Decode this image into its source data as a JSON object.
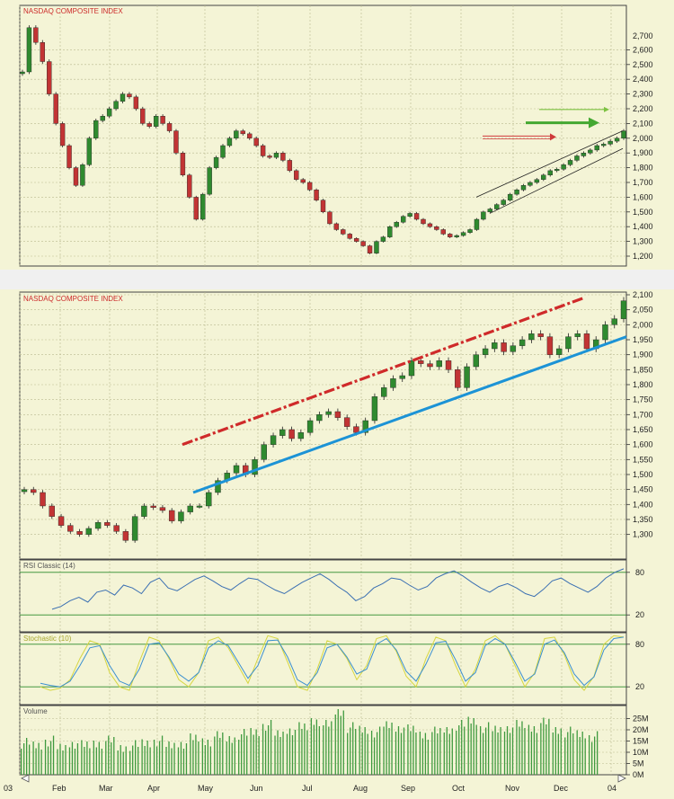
{
  "chart_data": [
    {
      "type": "line",
      "title": "NASDAQ COMPOSITE INDEX",
      "ylim": [
        1150,
        2750
      ],
      "yticks": [
        "2,600",
        "2,500",
        "2,400",
        "2,300",
        "2,200",
        "2,100",
        "2,000",
        "1,900",
        "1,800",
        "1,700",
        "1,600",
        "1,500",
        "1,400",
        "1,300",
        "1,200"
      ],
      "ytick_values": [
        2600,
        2500,
        2400,
        2300,
        2200,
        2100,
        2000,
        1900,
        1800,
        1700,
        1600,
        1500,
        1400,
        1300,
        1200
      ],
      "top_tick": "2,700",
      "series": [
        {
          "values": [
            2450,
            2750,
            2650,
            2520,
            2300,
            2100,
            1950,
            1800,
            1680,
            1820,
            2000,
            2120,
            2150,
            2200,
            2250,
            2300,
            2280,
            2200,
            2100,
            2080,
            2150,
            2100,
            2050,
            1900,
            1750,
            1600,
            1450,
            1620,
            1800,
            1870,
            1950,
            2000,
            2050,
            2030,
            2000,
            1950,
            1880,
            1870,
            1900,
            1850,
            1780,
            1720,
            1700,
            1650,
            1580,
            1500,
            1420,
            1380,
            1350,
            1320,
            1300,
            1270,
            1220,
            1300,
            1330,
            1400,
            1430,
            1470,
            1490,
            1450,
            1420,
            1400,
            1380,
            1350,
            1330,
            1340,
            1360,
            1380,
            1450,
            1500,
            1520,
            1550,
            1580,
            1620,
            1650,
            1680,
            1700,
            1720,
            1750,
            1780,
            1790,
            1820,
            1850,
            1880,
            1900,
            1920,
            1950,
            1960,
            1980,
            2000,
            2050
          ]
        }
      ],
      "channel": {
        "lower": [
          [
            1500,
            1490
          ],
          [
            2030,
            1930
          ]
        ],
        "upper": [
          [
            1700,
            1600
          ],
          [
            2120,
            2050
          ]
        ]
      },
      "arrows": [
        {
          "color": "#7dc242",
          "value": 2195
        },
        {
          "color": "#44a831",
          "value": 2105
        },
        {
          "color": "#cf3a3a",
          "value": 2015
        }
      ]
    },
    {
      "type": "line",
      "title": "NASDAQ COMPOSITE INDEX",
      "ylim": [
        1260,
        2100
      ],
      "yticks": [
        "2,100",
        "2,050",
        "2,000",
        "1,950",
        "1,900",
        "1,850",
        "1,800",
        "1,750",
        "1,700",
        "1,650",
        "1,600",
        "1,550",
        "1,500",
        "1,450",
        "1,400",
        "1,350",
        "1,300"
      ],
      "ytick_values": [
        2100,
        2050,
        2000,
        1950,
        1900,
        1850,
        1800,
        1750,
        1700,
        1650,
        1600,
        1550,
        1500,
        1450,
        1400,
        1350,
        1300
      ],
      "x_labels": [
        "03",
        "Feb",
        "Mar",
        "Apr",
        "May",
        "Jun",
        "Jul",
        "Aug",
        "Sep",
        "Oct",
        "Nov",
        "Dec",
        "04"
      ],
      "series": [
        {
          "values": [
            1450,
            1440,
            1395,
            1360,
            1330,
            1310,
            1300,
            1320,
            1340,
            1330,
            1310,
            1280,
            1360,
            1395,
            1390,
            1380,
            1345,
            1375,
            1395,
            1395,
            1440,
            1480,
            1505,
            1530,
            1500,
            1550,
            1600,
            1630,
            1650,
            1620,
            1640,
            1680,
            1700,
            1710,
            1690,
            1660,
            1640,
            1680,
            1760,
            1790,
            1820,
            1830,
            1880,
            1870,
            1860,
            1880,
            1850,
            1790,
            1860,
            1900,
            1920,
            1940,
            1910,
            1930,
            1950,
            1970,
            1960,
            1900,
            1920,
            1960,
            1970,
            1920,
            1950,
            2000,
            2020,
            2080
          ]
        }
      ],
      "resistance": [
        [
          1600,
          2090
        ]
      ],
      "support": [
        [
          1440,
          1960
        ]
      ]
    },
    {
      "type": "line",
      "title": "RSI Classic (14)",
      "ylim": [
        0,
        100
      ],
      "yticks": [
        "80",
        "20"
      ],
      "ytick_values": [
        80,
        20
      ],
      "series": [
        {
          "values": [
            28,
            32,
            40,
            45,
            38,
            52,
            55,
            48,
            62,
            58,
            50,
            66,
            72,
            58,
            54,
            62,
            70,
            75,
            68,
            60,
            55,
            64,
            72,
            70,
            62,
            55,
            50,
            58,
            66,
            72,
            78,
            70,
            60,
            52,
            40,
            46,
            58,
            64,
            72,
            70,
            62,
            55,
            60,
            72,
            78,
            82,
            75,
            66,
            58,
            52,
            60,
            64,
            58,
            50,
            46,
            56,
            68,
            72,
            64,
            58,
            52,
            60,
            72,
            80,
            85
          ]
        }
      ]
    },
    {
      "type": "line",
      "title": "Stochastic (10)",
      "ylim": [
        0,
        100
      ],
      "yticks": [
        "80",
        "20"
      ],
      "ytick_values": [
        80,
        20
      ],
      "series": [
        {
          "values": [
            20,
            15,
            18,
            30,
            60,
            85,
            80,
            40,
            20,
            15,
            55,
            90,
            85,
            60,
            30,
            20,
            40,
            85,
            90,
            75,
            50,
            25,
            60,
            92,
            88,
            55,
            20,
            15,
            45,
            85,
            80,
            60,
            30,
            50,
            88,
            92,
            70,
            35,
            20,
            60,
            90,
            85,
            50,
            20,
            45,
            85,
            92,
            80,
            50,
            20,
            40,
            88,
            90,
            65,
            30,
            15,
            35,
            80,
            92,
            90
          ]
        },
        {
          "values": [
            25,
            22,
            20,
            28,
            50,
            75,
            78,
            50,
            28,
            22,
            45,
            80,
            82,
            62,
            38,
            28,
            40,
            75,
            85,
            78,
            55,
            32,
            50,
            85,
            86,
            62,
            30,
            22,
            40,
            75,
            80,
            62,
            38,
            45,
            80,
            88,
            72,
            42,
            28,
            52,
            82,
            84,
            58,
            28,
            40,
            78,
            88,
            80,
            55,
            28,
            38,
            80,
            86,
            68,
            38,
            22,
            34,
            72,
            88,
            90
          ]
        }
      ]
    },
    {
      "type": "bar",
      "title": "Volume",
      "ylim": [
        0,
        30
      ],
      "yticks": [
        "25M",
        "20M",
        "15M",
        "10M",
        "5M",
        "0M"
      ],
      "ytick_values": [
        25,
        20,
        15,
        10,
        5,
        0
      ],
      "values": [
        14,
        13,
        15,
        12,
        14,
        13,
        14,
        15,
        12,
        13,
        14,
        15,
        13,
        14,
        16,
        15,
        17,
        16,
        18,
        19,
        22,
        18,
        20,
        21,
        24,
        22,
        28,
        21,
        20,
        19,
        22,
        21,
        20,
        18,
        19,
        20,
        22,
        24,
        21,
        20,
        21,
        22,
        21,
        23,
        20,
        19,
        18,
        17
      ]
    }
  ]
}
